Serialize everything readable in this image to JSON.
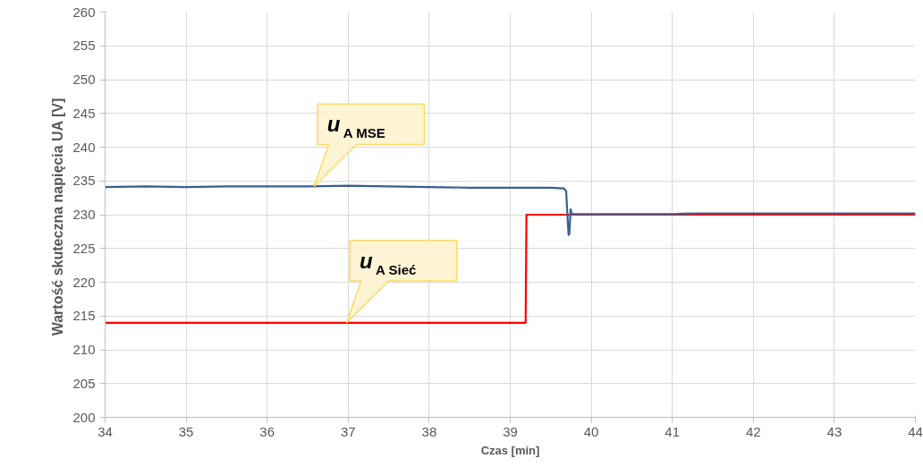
{
  "chart_data": {
    "type": "line",
    "xlabel": "Czas [min]",
    "ylabel": "Wartość skuteczna napięcia  UA [V]",
    "xlim": [
      34,
      44
    ],
    "xticks": [
      34,
      35,
      36,
      37,
      38,
      39,
      40,
      41,
      42,
      43,
      44
    ],
    "ylim": [
      200,
      260
    ],
    "yticks": [
      200,
      205,
      210,
      215,
      220,
      225,
      230,
      235,
      240,
      245,
      250,
      255,
      260
    ],
    "grid": true,
    "marker": "none",
    "line_style": "solid",
    "series": [
      {
        "color": "#3a5f8f",
        "x": [
          34,
          34.5,
          35,
          35.5,
          36,
          36.5,
          37,
          37.5,
          38,
          38.5,
          39,
          39.5,
          39.66,
          39.69,
          39.71,
          39.72,
          39.73,
          39.745,
          39.76,
          40,
          40.5,
          41,
          41.3,
          42,
          43,
          44
        ],
        "values": [
          234.1,
          234.2,
          234.1,
          234.2,
          234.2,
          234.2,
          234.3,
          234.2,
          234.1,
          234.0,
          234.0,
          234.0,
          233.9,
          233.5,
          229,
          227.0,
          227.2,
          230.8,
          230.1,
          230.1,
          230.1,
          230.1,
          230.2,
          230.2,
          230.2,
          230.2
        ]
      },
      {
        "color": "#ff0000",
        "x": [
          34,
          39.19,
          39.2,
          40,
          44
        ],
        "values": [
          214,
          214,
          230.0,
          230.0,
          230.0
        ]
      }
    ],
    "annotations": [
      {
        "text": "u$_{A MSE}$",
        "x": 36.58,
        "y": 234.2
      },
      {
        "text": "u$_{A Sieć}$",
        "x": 36.98,
        "y": 214
      }
    ]
  }
}
